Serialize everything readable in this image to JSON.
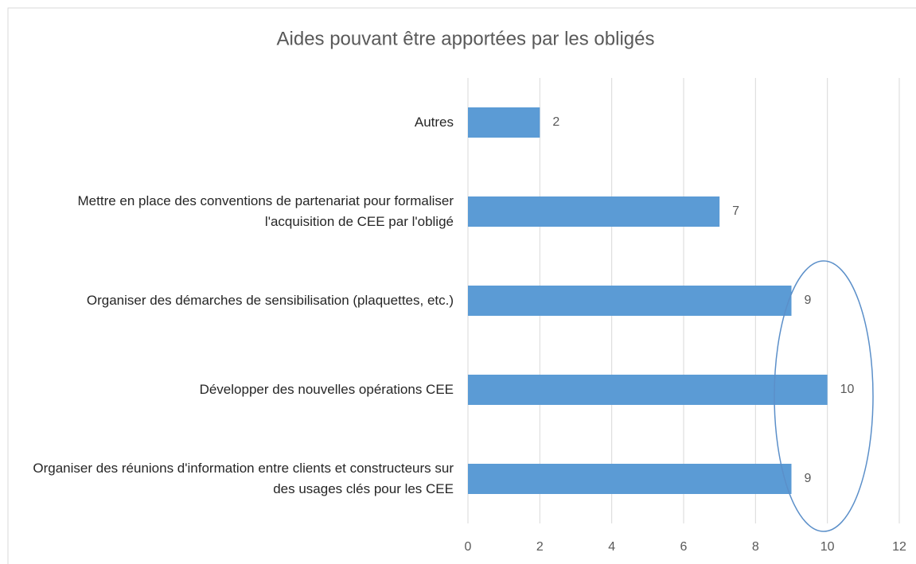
{
  "chart_data": {
    "type": "bar",
    "orientation": "horizontal",
    "title": "Aides pouvant être apportées par les obligés",
    "categories": [
      "Autres",
      "Mettre en place des conventions de partenariat pour formaliser l'acquisition de CEE par l'obligé",
      "Organiser des démarches de sensibilisation (plaquettes, etc.)",
      "Développer des nouvelles opérations CEE",
      "Organiser des réunions d'information entre clients et constructeurs sur des usages clés pour les CEE"
    ],
    "values": [
      2,
      7,
      9,
      10,
      9
    ],
    "color": "#5b9bd5",
    "xlim": [
      0,
      12
    ],
    "xticks": [
      0,
      2,
      4,
      6,
      8,
      10,
      12
    ],
    "grid": true
  }
}
